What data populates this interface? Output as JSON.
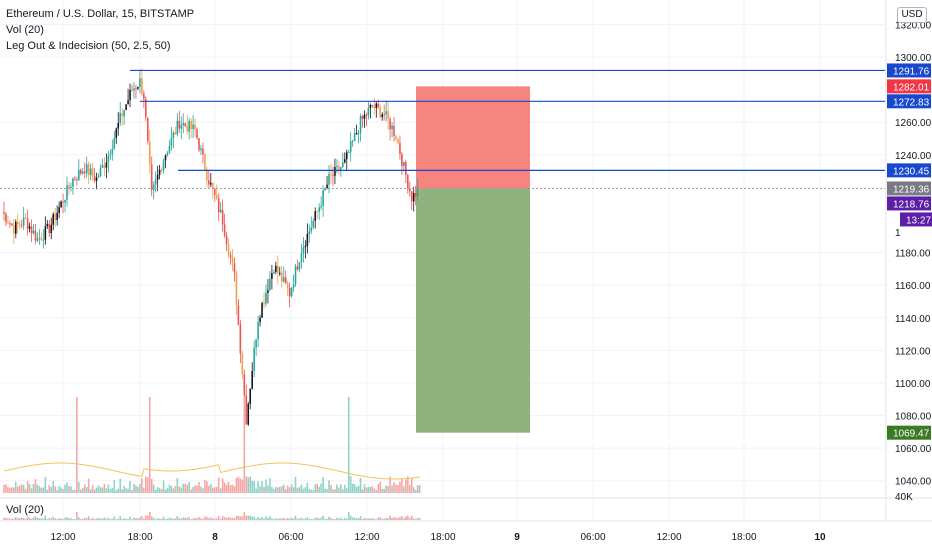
{
  "header": {
    "symbol_line": "Ethereum / U.S. Dollar, 15, BITSTAMP",
    "vol_indicator": "Vol (20)",
    "custom_indicator": "Leg Out &  Indecision (50, 2.5, 50)"
  },
  "currency_label": "USD",
  "vol_pane": {
    "label": "Vol (20)"
  },
  "colors": {
    "up": "#26a69a",
    "down": "#ef5350",
    "orange": "#f0a04b",
    "black": "#131722",
    "hline": "#1848cc",
    "stop_zone": "#f7857f",
    "target_zone": "#8fb37e",
    "label_blue": "#1848cc",
    "label_red": "#f23645",
    "label_purple": "#5b1ea6",
    "label_green": "#3a7a23",
    "label_gray": "#787b86"
  },
  "price_axis": {
    "ticks": [
      "1320.00",
      "1300.00",
      "1260.00",
      "1240.00",
      "1180.00",
      "1160.00",
      "1140.00",
      "1120.00",
      "1100.00",
      "1080.00",
      "1060.00",
      "1040.00"
    ],
    "partial_tick": "1",
    "volume_tick": "40K"
  },
  "time_axis": {
    "ticks": [
      "12:00",
      "18:00",
      "8",
      "06:00",
      "12:00",
      "18:00",
      "9",
      "06:00",
      "12:00",
      "18:00",
      "10"
    ]
  },
  "price_labels": [
    {
      "value": "1291.76",
      "kind": "blue"
    },
    {
      "value": "1282.01",
      "kind": "red"
    },
    {
      "value": "1272.83",
      "kind": "blue"
    },
    {
      "value": "1230.45",
      "kind": "blue"
    },
    {
      "value": "1219.36",
      "kind": "gray"
    },
    {
      "value": "1218.76",
      "kind": "purple"
    },
    {
      "value": "13:27",
      "kind": "purple"
    },
    {
      "value": "1069.47",
      "kind": "green"
    }
  ],
  "chart_data": {
    "type": "candlestick",
    "title": "Ethereum / U.S. Dollar, 15, BITSTAMP",
    "ylim": [
      1030,
      1335
    ],
    "horizontal_levels": [
      1291.76,
      1272.83,
      1230.45
    ],
    "position_tool": {
      "entry": 1219.36,
      "stop": 1282.01,
      "target": 1069.47
    },
    "ohlc_keypoints": [
      [
        0,
        1205
      ],
      [
        6,
        1195
      ],
      [
        12,
        1200
      ],
      [
        18,
        1188
      ],
      [
        24,
        1195
      ],
      [
        30,
        1210
      ],
      [
        36,
        1225
      ],
      [
        42,
        1232
      ],
      [
        48,
        1225
      ],
      [
        54,
        1240
      ],
      [
        60,
        1262
      ],
      [
        66,
        1280
      ],
      [
        70,
        1285
      ],
      [
        72,
        1276
      ],
      [
        76,
        1215
      ],
      [
        82,
        1238
      ],
      [
        90,
        1260
      ],
      [
        98,
        1255
      ],
      [
        104,
        1228
      ],
      [
        112,
        1200
      ],
      [
        118,
        1165
      ],
      [
        124,
        1078
      ],
      [
        130,
        1140
      ],
      [
        138,
        1172
      ],
      [
        146,
        1155
      ],
      [
        152,
        1182
      ],
      [
        160,
        1205
      ],
      [
        166,
        1225
      ],
      [
        174,
        1235
      ],
      [
        182,
        1260
      ],
      [
        188,
        1270
      ],
      [
        194,
        1265
      ],
      [
        200,
        1252
      ],
      [
        204,
        1232
      ],
      [
        208,
        1214
      ],
      [
        212,
        1219
      ]
    ]
  }
}
